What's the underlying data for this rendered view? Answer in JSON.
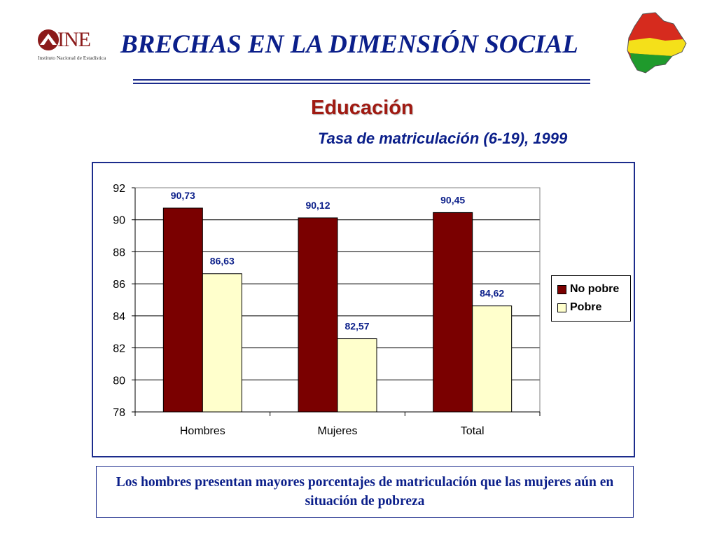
{
  "header": {
    "logo_name": "INE",
    "logo_subtitle": "Instituto Nacional de Estadística",
    "title": "BRECHAS EN LA DIMENSIÓN SOCIAL"
  },
  "section": {
    "title": "Educación",
    "subtitle": "Tasa de matriculación (6-19), 1999"
  },
  "chart_data": {
    "type": "bar",
    "categories": [
      "Hombres",
      "Mujeres",
      "Total"
    ],
    "series": [
      {
        "name": "No pobre",
        "values": [
          90.73,
          90.12,
          90.45
        ],
        "labels": [
          "90,73",
          "90,12",
          "90,45"
        ],
        "color": "#7a0000"
      },
      {
        "name": "Pobre",
        "values": [
          86.63,
          82.57,
          84.62
        ],
        "labels": [
          "86,63",
          "82,57",
          "84,62"
        ],
        "color": "#ffffcc"
      }
    ],
    "ylim": [
      78,
      92
    ],
    "yticks": [
      78,
      80,
      82,
      84,
      86,
      88,
      90,
      92
    ],
    "grid": true,
    "legend": "right"
  },
  "note": {
    "text": "Los hombres presentan mayores porcentajes de matriculación que las mujeres aún en situación de pobreza"
  },
  "colors": {
    "title_blue": "#0b1f8a",
    "section_red": "#a01a12",
    "frame_blue": "#1c2c8c"
  }
}
